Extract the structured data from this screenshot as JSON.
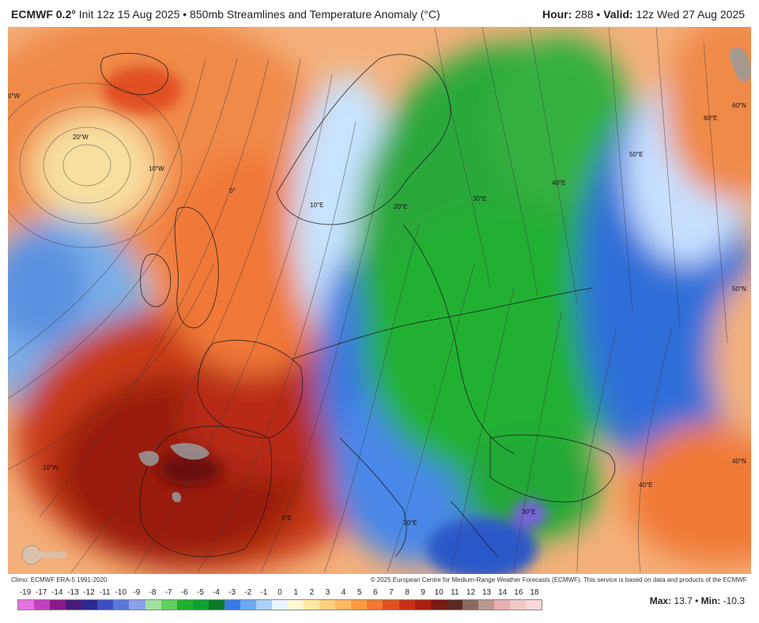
{
  "header": {
    "model": "ECMWF 0.2°",
    "description": "Init 12z 15 Aug 2025 • 850mb Streamlines and Temperature Anomaly (°C)",
    "hour_label": "Hour:",
    "hour_value": "288",
    "valid_label": "Valid:",
    "valid_value": "12z Wed 27 Aug 2025"
  },
  "map_labels": {
    "lon_0w": "0°W",
    "lon_20w": "20°W",
    "lon_10w_a": "10°W",
    "lon_0e": "0°",
    "lon_10e": "10°E",
    "lon_20e": "20°E",
    "lon_30e": "30°E",
    "lon_40e": "40°E",
    "lon_50e": "50°E",
    "lon_60e": "60°E",
    "lat_60n": "60°N",
    "lat_50n": "50°N",
    "lat_40n": "40°N",
    "lon_10w_b": "10°W",
    "lon_0_b": "0°E",
    "lon_20e_b": "20°E",
    "lon_30e_b": "30°E",
    "lon_40e_b": "40°E"
  },
  "credits": {
    "left": "Climo: ECMWF ERA-5 1991-2020",
    "right": "© 2025 European Centre for Medium-Range Weather Forecasts (ECMWF). This service is based on data and products of the ECMWF."
  },
  "scale": {
    "labels": [
      "-19",
      "-17",
      "-14",
      "-13",
      "-12",
      "-11",
      "-10",
      "-9",
      "-8",
      "-7",
      "-6",
      "-5",
      "-4",
      "-3",
      "-2",
      "-1",
      "0",
      "1",
      "2",
      "3",
      "4",
      "5",
      "6",
      "7",
      "8",
      "9",
      "10",
      "11",
      "12",
      "13",
      "14",
      "16",
      "18"
    ],
    "colors": [
      "#e870e0",
      "#c040c0",
      "#8a1a8a",
      "#4a1a7a",
      "#2a2a90",
      "#3a50c0",
      "#5a78d8",
      "#8aa0e8",
      "#a0e0a0",
      "#60d060",
      "#20b030",
      "#10a030",
      "#0a7a2a",
      "#3a7ae8",
      "#6aa8f0",
      "#a8d0f8",
      "#e8f4ff",
      "#fff8d0",
      "#ffe8a0",
      "#ffd080",
      "#ffb860",
      "#ff9a40",
      "#f07830",
      "#e05020",
      "#c83018",
      "#a82010",
      "#7a1a10",
      "#5a2a20",
      "#8a6a60",
      "#b89890",
      "#e8b0b0",
      "#f0c8c8",
      "#f8d8d8"
    ]
  },
  "stats": {
    "max_label": "Max:",
    "max_value": "13.7",
    "min_label": "Min:",
    "min_value": "-10.3"
  }
}
